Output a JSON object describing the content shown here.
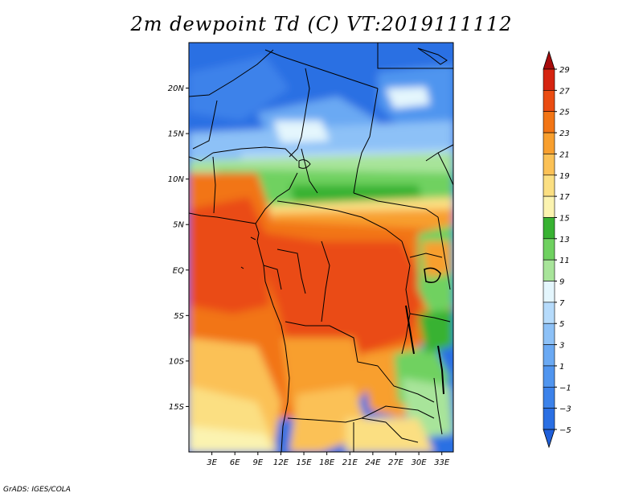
{
  "title": "2m dewpoint Td (C) VT:2019111112",
  "credit": "GrADS: IGES/COLA",
  "map": {
    "lon_range": [
      0,
      34.5
    ],
    "lat_range": [
      -20,
      25
    ],
    "lat_ticks": [
      {
        "value": 20,
        "label": "20N"
      },
      {
        "value": 15,
        "label": "15N"
      },
      {
        "value": 10,
        "label": "10N"
      },
      {
        "value": 5,
        "label": "5N"
      },
      {
        "value": 0,
        "label": "EQ"
      },
      {
        "value": -5,
        "label": "5S"
      },
      {
        "value": -10,
        "label": "10S"
      },
      {
        "value": -15,
        "label": "15S"
      }
    ],
    "lon_ticks": [
      {
        "value": 3,
        "label": "3E"
      },
      {
        "value": 6,
        "label": "6E"
      },
      {
        "value": 9,
        "label": "9E"
      },
      {
        "value": 12,
        "label": "12E"
      },
      {
        "value": 15,
        "label": "15E"
      },
      {
        "value": 18,
        "label": "18E"
      },
      {
        "value": 21,
        "label": "21E"
      },
      {
        "value": 24,
        "label": "24E"
      },
      {
        "value": 27,
        "label": "27E"
      },
      {
        "value": 30,
        "label": "30E"
      },
      {
        "value": 33,
        "label": "33E"
      }
    ]
  },
  "colorbar": {
    "bins": [
      {
        "from": null,
        "to": -5,
        "color": "#1f5fd9"
      },
      {
        "from": -5,
        "to": -3,
        "color": "#2a6fe3"
      },
      {
        "from": -3,
        "to": -1,
        "color": "#3c82ea"
      },
      {
        "from": -1,
        "to": 1,
        "color": "#5095ef"
      },
      {
        "from": 1,
        "to": 3,
        "color": "#6aa9f3"
      },
      {
        "from": 3,
        "to": 5,
        "color": "#8dc1f7"
      },
      {
        "from": 5,
        "to": 7,
        "color": "#b6dbfb"
      },
      {
        "from": 7,
        "to": 9,
        "color": "#e4f6fd"
      },
      {
        "from": 9,
        "to": 11,
        "color": "#a8e49a"
      },
      {
        "from": 11,
        "to": 13,
        "color": "#6fd160"
      },
      {
        "from": 13,
        "to": 15,
        "color": "#38b232"
      },
      {
        "from": 15,
        "to": 17,
        "color": "#fbf3b0"
      },
      {
        "from": 17,
        "to": 19,
        "color": "#fbdf82"
      },
      {
        "from": 19,
        "to": 21,
        "color": "#fbc156"
      },
      {
        "from": 21,
        "to": 23,
        "color": "#f89f2e"
      },
      {
        "from": 23,
        "to": 25,
        "color": "#f27515"
      },
      {
        "from": 25,
        "to": 27,
        "color": "#ea4c12"
      },
      {
        "from": 27,
        "to": 29,
        "color": "#d52410"
      },
      {
        "from": 29,
        "to": null,
        "color": "#a80c0c"
      }
    ],
    "labels": [
      "29",
      "27",
      "25",
      "23",
      "21",
      "19",
      "17",
      "15",
      "13",
      "11",
      "9",
      "7",
      "5",
      "3",
      "1",
      "−1",
      "−3",
      "−5"
    ]
  }
}
